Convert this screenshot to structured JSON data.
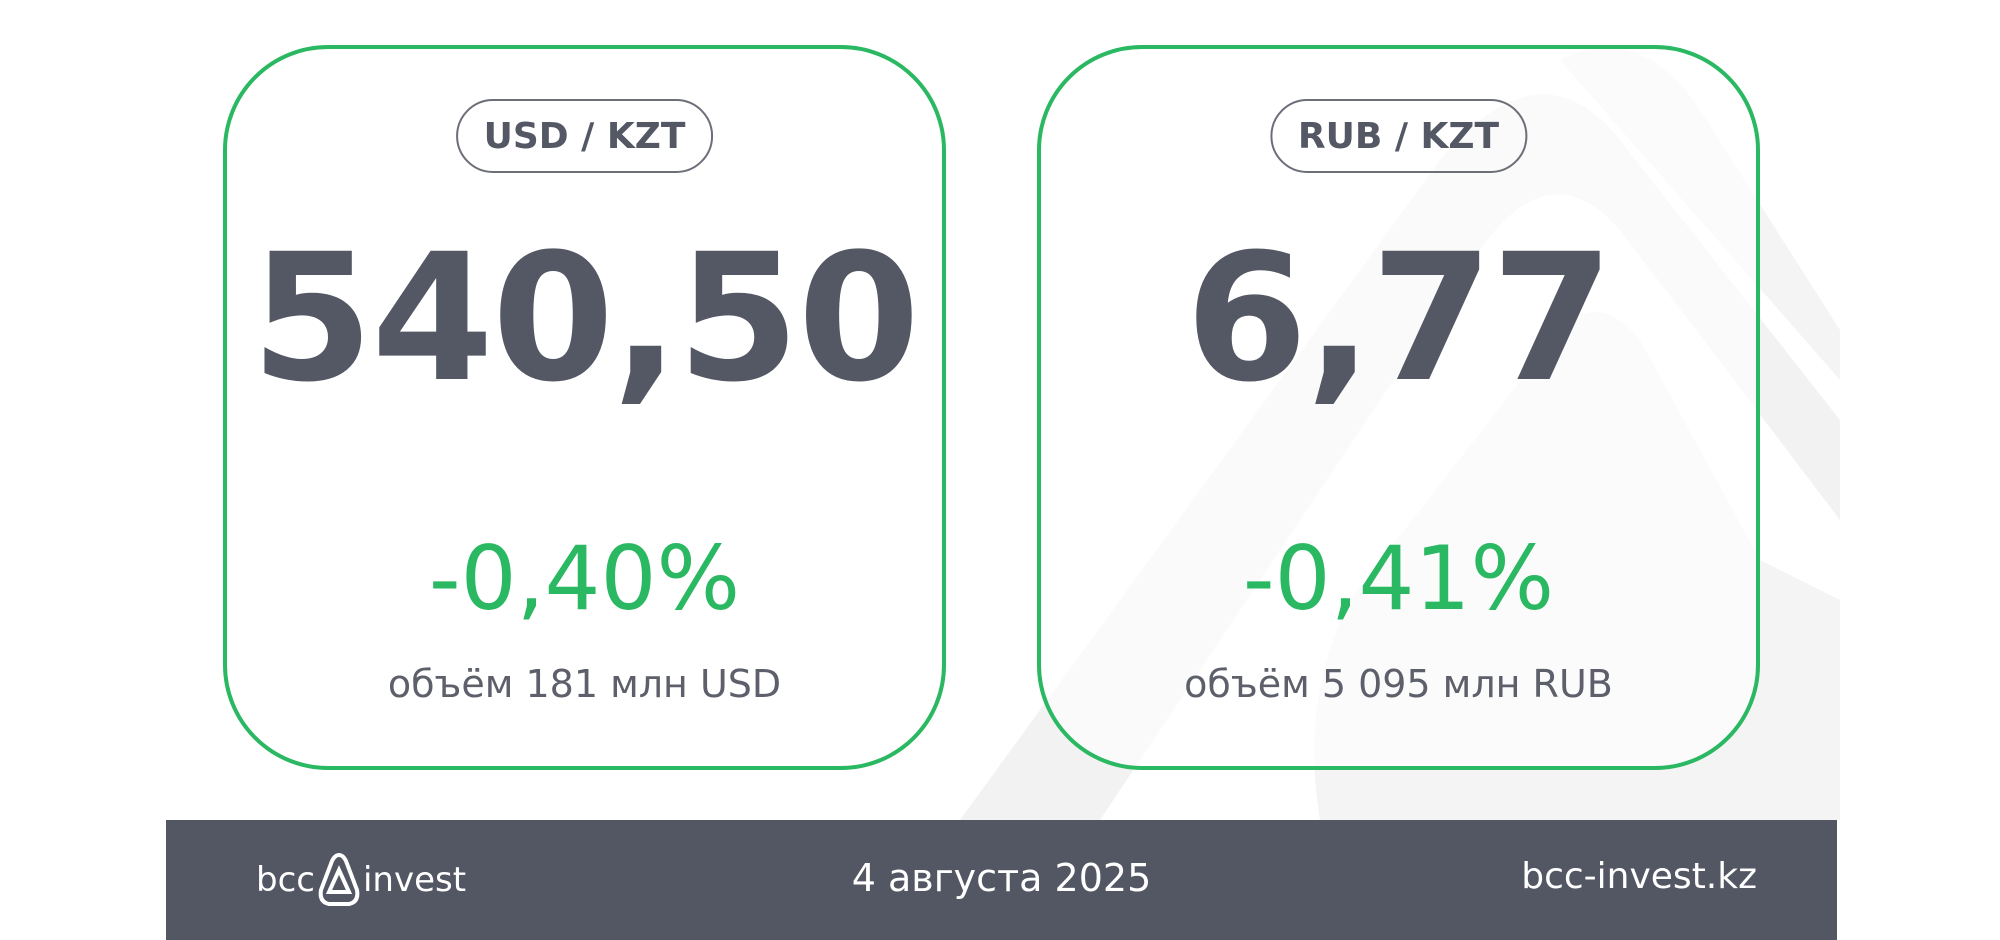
{
  "colors": {
    "accent": "#2bb862",
    "text": "#545764",
    "footer_bg": "#535663"
  },
  "cards": [
    {
      "pair": "USD / KZT",
      "rate": "540,50",
      "change": "-0,40%",
      "volume": "объём 181 млн USD"
    },
    {
      "pair": "RUB / KZT",
      "rate": "6,77",
      "change": "-0,41%",
      "volume": "объём 5 095 млн RUB"
    }
  ],
  "footer": {
    "logo_left": "bcc",
    "logo_right": "invest",
    "date": "4 августа 2025",
    "website": "bcc-invest.kz"
  }
}
